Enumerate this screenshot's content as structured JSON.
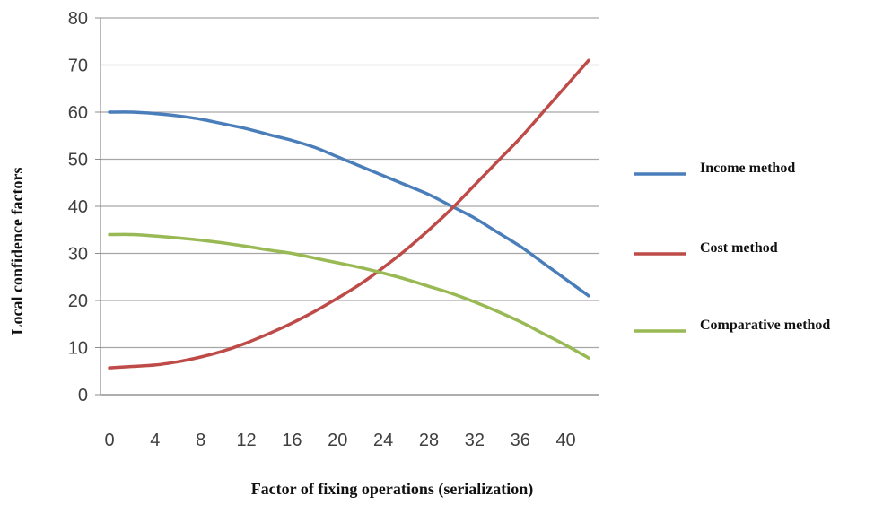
{
  "chart_data": {
    "type": "line",
    "title": "",
    "xlabel": "Factor of fixing operations (serialization)",
    "ylabel": "Local confidence factors",
    "xlim": [
      0,
      42
    ],
    "ylim": [
      0,
      80
    ],
    "x_ticks": [
      "0",
      "4",
      "8",
      "12",
      "16",
      "20",
      "24",
      "28",
      "32",
      "36",
      "40"
    ],
    "y_ticks": [
      "0",
      "10",
      "20",
      "30",
      "40",
      "50",
      "60",
      "70",
      "80"
    ],
    "grid": "horizontal",
    "legend_position": "right",
    "series": [
      {
        "name": "Income method",
        "color": "#4a7ebb",
        "x": [
          0,
          2,
          4,
          6,
          8,
          10,
          12,
          14,
          16,
          18,
          20,
          22,
          24,
          26,
          28,
          30,
          32,
          34,
          36,
          38,
          40,
          42
        ],
        "y": [
          60,
          60,
          59.7,
          59.2,
          58.5,
          57.5,
          56.5,
          55.2,
          54,
          52.5,
          50.5,
          48.5,
          46.5,
          44.5,
          42.5,
          40,
          37.5,
          34.5,
          31.5,
          28,
          24.5,
          21
        ]
      },
      {
        "name": "Cost method",
        "color": "#be4b48",
        "x": [
          0,
          2,
          4,
          6,
          8,
          10,
          12,
          14,
          16,
          18,
          20,
          22,
          24,
          26,
          28,
          30,
          32,
          34,
          36,
          38,
          40,
          42
        ],
        "y": [
          5.7,
          6,
          6.3,
          7,
          8,
          9.3,
          11,
          13,
          15.2,
          17.7,
          20.5,
          23.5,
          27,
          30.8,
          35,
          39.5,
          44.5,
          49.5,
          54.5,
          60,
          65.5,
          71
        ]
      },
      {
        "name": "Comparative method",
        "color": "#98b954",
        "x": [
          0,
          2,
          4,
          6,
          8,
          10,
          12,
          14,
          16,
          18,
          20,
          22,
          24,
          26,
          28,
          30,
          32,
          34,
          36,
          38,
          40,
          42
        ],
        "y": [
          34,
          34,
          33.7,
          33.3,
          32.8,
          32.2,
          31.5,
          30.7,
          30,
          29,
          28,
          27,
          25.8,
          24.5,
          23,
          21.5,
          19.7,
          17.7,
          15.5,
          13,
          10.5,
          7.8
        ]
      }
    ]
  }
}
